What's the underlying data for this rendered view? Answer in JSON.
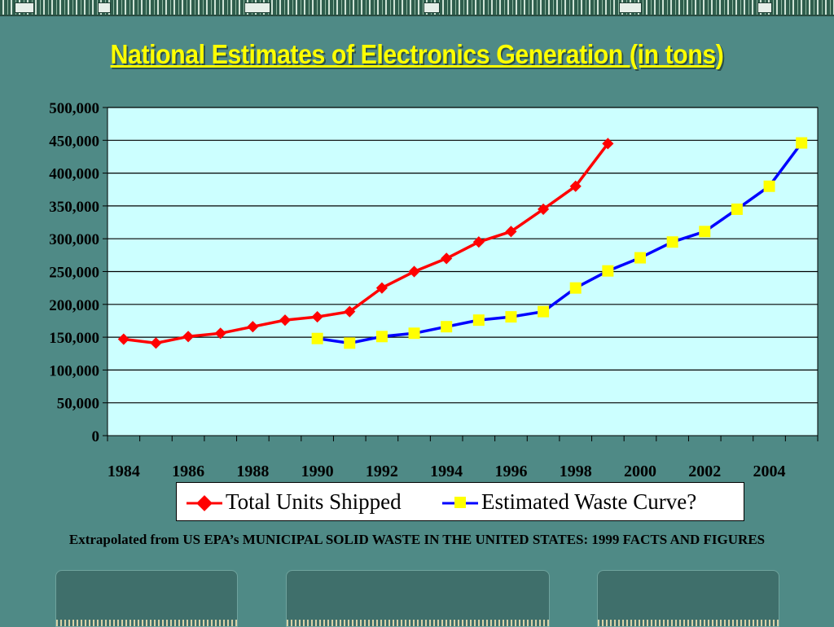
{
  "slide": {
    "title": "National Estimates of Electronics Generation (in tons)",
    "source_note": "Extrapolated from US EPA’s MUNICIPAL SOLID WASTE IN THE UNITED STATES: 1999 FACTS AND FIGURES"
  },
  "chart_data": {
    "type": "line",
    "title": "",
    "xlabel": "",
    "ylabel": "",
    "ylim": [
      0,
      500000
    ],
    "y_ticks": [
      "0",
      "50,000",
      "100,000",
      "150,000",
      "200,000",
      "250,000",
      "300,000",
      "350,000",
      "400,000",
      "450,000",
      "500,000"
    ],
    "xlim": [
      1984,
      2005
    ],
    "x_tick_labels": [
      "1984",
      "1986",
      "1988",
      "1990",
      "1992",
      "1994",
      "1996",
      "1998",
      "2000",
      "2002",
      "2004"
    ],
    "grid": true,
    "plot_background": "#ccffff",
    "legend_position": "bottom",
    "series": [
      {
        "name": "Total Units Shipped",
        "color": "#ff0000",
        "marker": "diamond",
        "x": [
          1984,
          1985,
          1986,
          1987,
          1988,
          1989,
          1990,
          1991,
          1992,
          1993,
          1994,
          1995,
          1996,
          1997,
          1998,
          1999
        ],
        "values": [
          147000,
          141000,
          151000,
          156000,
          166000,
          176000,
          181000,
          189000,
          225000,
          250000,
          270000,
          295000,
          311000,
          345000,
          380000,
          445000
        ]
      },
      {
        "name": "Estimated Waste Curve?",
        "color": "#0000ff",
        "marker": "square",
        "marker_color": "#ffff00",
        "x": [
          1990,
          1991,
          1992,
          1993,
          1994,
          1995,
          1996,
          1997,
          1998,
          1999,
          2000,
          2001,
          2002,
          2003,
          2004,
          2005
        ],
        "values": [
          148000,
          141000,
          151000,
          156000,
          166000,
          176000,
          181000,
          189000,
          225000,
          251000,
          271000,
          295000,
          311000,
          345000,
          380000,
          446000
        ]
      }
    ]
  }
}
